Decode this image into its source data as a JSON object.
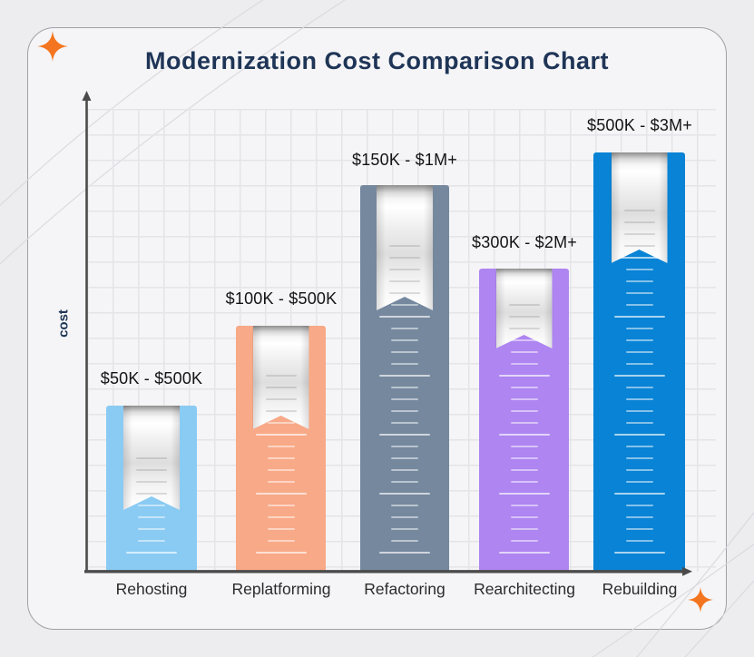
{
  "title": "Modernization Cost Comparison Chart",
  "colors": {
    "page_background": "#ededf0",
    "card_background": "#f5f5f7",
    "card_border": "#9fa0a6",
    "title_text": "#1f3557",
    "axis": "#4b4b4b",
    "grid_line": "#e4e4e9",
    "sparkle": "#f4751f",
    "decor_curve": "#d8d8de",
    "label_text": "#141414"
  },
  "chart_data": {
    "type": "bar",
    "title": "Modernization Cost Comparison Chart",
    "xlabel": "",
    "ylabel": "cost",
    "grid": true,
    "legend": false,
    "categories": [
      "Rehosting",
      "Replatforming",
      "Refactoring",
      "Rearchitecting",
      "Rebuilding"
    ],
    "value_labels": [
      "$50K - $500K",
      "$100K - $500K",
      "$150K - $1M+",
      "$300K - $2M+",
      "$500K - $3M+"
    ],
    "value_ranges_usd": [
      {
        "min": 50000,
        "max_label": "$500K",
        "max": 500000
      },
      {
        "min": 100000,
        "max_label": "$500K",
        "max": 500000
      },
      {
        "min": 150000,
        "max_label": "$1M+",
        "max": 1000000
      },
      {
        "min": 300000,
        "max_label": "$2M+",
        "max": 2000000
      },
      {
        "min": 500000,
        "max_label": "$3M+",
        "max": 3000000
      }
    ],
    "bars": [
      {
        "category": "Rehosting",
        "value_label": "$50K - $500K",
        "color": "#8acbf3",
        "relative_height": 0.4
      },
      {
        "category": "Replatforming",
        "value_label": "$100K - $500K",
        "color": "#f8a987",
        "relative_height": 0.59
      },
      {
        "category": "Refactoring",
        "value_label": "$150K - $1M+",
        "color": "#75889e",
        "relative_height": 0.92
      },
      {
        "category": "Rearchitecting",
        "value_label": "$300K - $2M+",
        "color": "#ae85f1",
        "relative_height": 0.72
      },
      {
        "category": "Rebuilding",
        "value_label": "$500K - $3M+",
        "color": "#0883d5",
        "relative_height": 1.0
      }
    ]
  }
}
